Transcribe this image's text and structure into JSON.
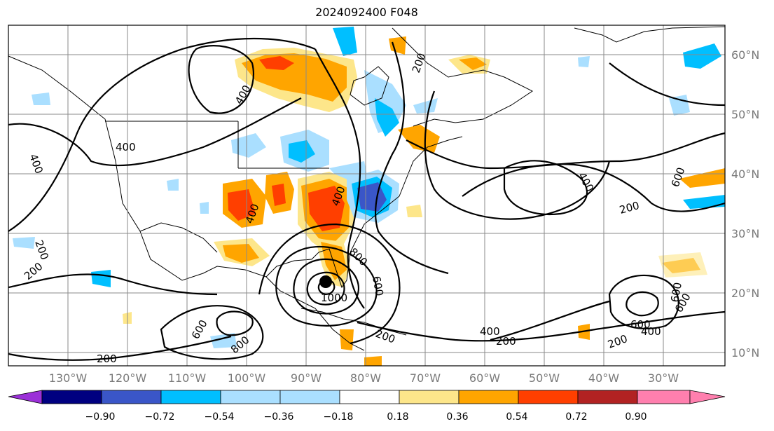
{
  "title": "2024092400 F048",
  "longitude_labels": [
    "130°W",
    "120°W",
    "110°W",
    "100°W",
    "90°W",
    "80°W",
    "70°W",
    "60°W",
    "50°W",
    "40°W",
    "30°W"
  ],
  "latitude_labels": [
    "60°N",
    "50°N",
    "40°N",
    "30°N",
    "20°N",
    "10°N"
  ],
  "colorbar": {
    "tick_labels": [
      "−0.90",
      "−0.72",
      "−0.54",
      "−0.36",
      "−0.18",
      "0.18",
      "0.36",
      "0.54",
      "0.72",
      "0.90"
    ],
    "colors": [
      "#9b30d8",
      "#000080",
      "#3a56c8",
      "#00bfff",
      "#aadfff",
      "#ffffff",
      "#fde68a",
      "#ffa500",
      "#ff3f00",
      "#b22222",
      "#ff7fae"
    ]
  },
  "contour_labels": [
    "200",
    "400",
    "600",
    "800",
    "1000"
  ],
  "storm_marker": "storm-center-dot"
}
